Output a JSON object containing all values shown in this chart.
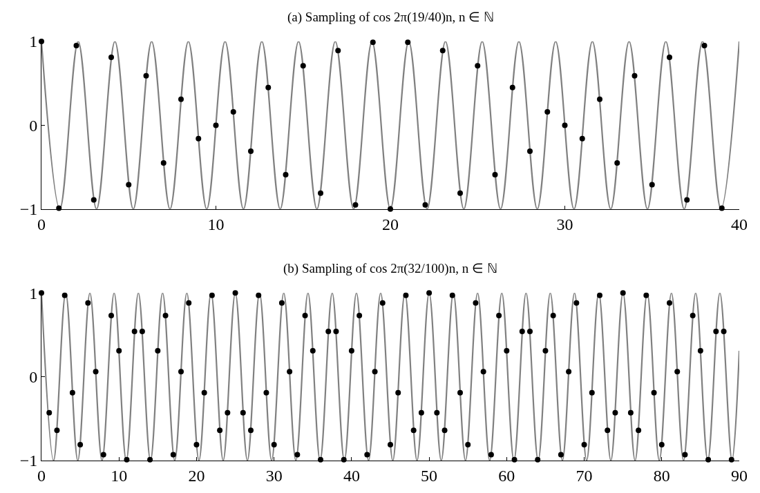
{
  "chart_data": [
    {
      "type": "line",
      "title": "(a) Sampling of cos 2π(19/40)n, n ∈ ℕ",
      "xlim": [
        0,
        40
      ],
      "xticks": [
        0,
        10,
        20,
        30,
        40
      ],
      "ylim": [
        -1,
        1
      ],
      "yticks": [
        -1,
        0,
        1
      ],
      "series": [
        {
          "color": "#808080",
          "marker": "none",
          "line_style": "solid",
          "x": [
            0,
            1.053,
            2.105,
            3.158,
            4.211,
            5.263,
            6.316,
            7.368,
            8.421,
            9.474,
            10.526,
            11.579,
            12.632,
            13.684,
            14.737,
            15.789,
            16.842,
            17.895,
            18.947,
            20,
            21.053,
            22.105,
            23.158,
            24.211,
            25.263,
            26.316,
            27.368,
            28.421,
            29.474,
            30.526,
            31.579,
            32.632,
            33.684,
            34.737,
            35.789,
            36.842,
            37.895,
            38.947,
            40
          ],
          "values": [
            1,
            -1,
            1,
            -1,
            1,
            -1,
            1,
            -1,
            1,
            -1,
            1,
            -1,
            1,
            -1,
            1,
            -1,
            1,
            -1,
            1,
            -1,
            1,
            -1,
            1,
            -1,
            1,
            -1,
            1,
            -1,
            1,
            -1,
            1,
            -1,
            1,
            -1,
            1,
            -1,
            1,
            -1,
            1
          ]
        },
        {
          "type": "scatter",
          "color": "#000000",
          "marker": "circle",
          "x": [
            0,
            1,
            2,
            3,
            4,
            5,
            6,
            7,
            8,
            9,
            10,
            11,
            12,
            13,
            14,
            15,
            16,
            17,
            18,
            19,
            20,
            21,
            22,
            23,
            24,
            25,
            26,
            27,
            28,
            29,
            30,
            31,
            32,
            33,
            34,
            35,
            36,
            37,
            38,
            39
          ],
          "values": [
            1,
            -0.99,
            0.95,
            -0.89,
            0.81,
            -0.71,
            0.59,
            -0.45,
            0.31,
            -0.16,
            0,
            0.16,
            -0.31,
            0.45,
            -0.59,
            0.71,
            -0.81,
            0.89,
            -0.95,
            0.99,
            -1,
            0.99,
            -0.95,
            0.89,
            -0.81,
            0.71,
            -0.59,
            0.45,
            -0.31,
            0.16,
            0,
            -0.16,
            0.31,
            -0.45,
            0.59,
            -0.71,
            0.81,
            -0.89,
            0.95,
            -0.99
          ]
        }
      ]
    },
    {
      "type": "line",
      "title": "(b) Sampling of cos 2π(32/100)n, n ∈ ℕ",
      "xlim": [
        0,
        90
      ],
      "xticks": [
        0,
        10,
        20,
        30,
        40,
        50,
        60,
        70,
        80,
        90
      ],
      "ylim": [
        -1,
        1
      ],
      "yticks": [
        -1,
        0,
        1
      ],
      "series": [
        {
          "color": "#808080",
          "marker": "none",
          "line_style": "solid",
          "x": [
            0,
            1.5625,
            3.125,
            4.6875,
            6.25,
            7.8125,
            9.375,
            10.9375,
            12.5,
            14.0625,
            15.625,
            17.1875,
            18.75,
            20.3125,
            21.875,
            23.4375,
            25,
            26.5625,
            28.125,
            29.6875,
            31.25,
            32.8125,
            34.375,
            35.9375,
            37.5,
            39.0625,
            40.625,
            42.1875,
            43.75,
            45.3125,
            46.875,
            48.4375,
            50,
            51.5625,
            53.125,
            54.6875,
            56.25,
            57.8125,
            59.375,
            60.9375,
            62.5,
            64.0625,
            65.625,
            67.1875,
            68.75,
            70.3125,
            71.875,
            73.4375,
            75,
            76.5625,
            78.125,
            79.6875,
            81.25,
            82.8125,
            84.375,
            85.9375,
            87.5,
            89.0625,
            90
          ],
          "values": [
            1,
            -1,
            1,
            -1,
            1,
            -1,
            1,
            -1,
            1,
            -1,
            1,
            -1,
            1,
            -1,
            1,
            -1,
            1,
            -1,
            1,
            -1,
            1,
            -1,
            1,
            -1,
            1,
            -1,
            1,
            -1,
            1,
            -1,
            1,
            -1,
            1,
            -1,
            1,
            -1,
            1,
            -1,
            1,
            -1,
            1,
            -1,
            1,
            -1,
            1,
            -1,
            1,
            -1,
            1,
            -1,
            1,
            -1,
            1,
            -1,
            1,
            -1,
            1,
            -1,
            0.31
          ]
        },
        {
          "type": "scatter",
          "color": "#000000",
          "marker": "circle",
          "x": [
            0,
            1,
            2,
            3,
            4,
            5,
            6,
            7,
            8,
            9,
            10,
            11,
            12,
            13,
            14,
            15,
            16,
            17,
            18,
            19,
            20,
            21,
            22,
            23,
            24,
            25,
            26,
            27,
            28,
            29,
            30,
            31,
            32,
            33,
            34,
            35,
            36,
            37,
            38,
            39,
            40,
            41,
            42,
            43,
            44,
            45,
            46,
            47,
            48,
            49,
            50,
            51,
            52,
            53,
            54,
            55,
            56,
            57,
            58,
            59,
            60,
            61,
            62,
            63,
            64,
            65,
            66,
            67,
            68,
            69,
            70,
            71,
            72,
            73,
            74,
            75,
            76,
            77,
            78,
            79,
            80,
            81,
            82,
            83,
            84,
            85,
            86,
            87,
            88,
            89
          ],
          "values": [
            1,
            -0.43,
            -0.64,
            0.97,
            -0.19,
            -0.81,
            0.88,
            0.06,
            -0.93,
            0.73,
            0.31,
            -0.99,
            0.54,
            0.54,
            -0.99,
            0.31,
            0.73,
            -0.93,
            0.06,
            0.88,
            -0.81,
            -0.19,
            0.97,
            -0.64,
            -0.43,
            1,
            -0.43,
            -0.64,
            0.97,
            -0.19,
            -0.81,
            0.88,
            0.06,
            -0.93,
            0.73,
            0.31,
            -0.99,
            0.54,
            0.54,
            -0.99,
            0.31,
            0.73,
            -0.93,
            0.06,
            0.88,
            -0.81,
            -0.19,
            0.97,
            -0.64,
            -0.43,
            1,
            -0.43,
            -0.64,
            0.97,
            -0.19,
            -0.81,
            0.88,
            0.06,
            -0.93,
            0.73,
            0.31,
            -0.99,
            0.54,
            0.54,
            -0.99,
            0.31,
            0.73,
            -0.93,
            0.06,
            0.88,
            -0.81,
            -0.19,
            0.97,
            -0.64,
            -0.43,
            1,
            -0.43,
            -0.64,
            0.97,
            -0.19,
            -0.81,
            0.88,
            0.06,
            -0.93,
            0.73,
            0.31,
            -0.99,
            0.54,
            0.54,
            -0.99
          ]
        }
      ]
    }
  ]
}
